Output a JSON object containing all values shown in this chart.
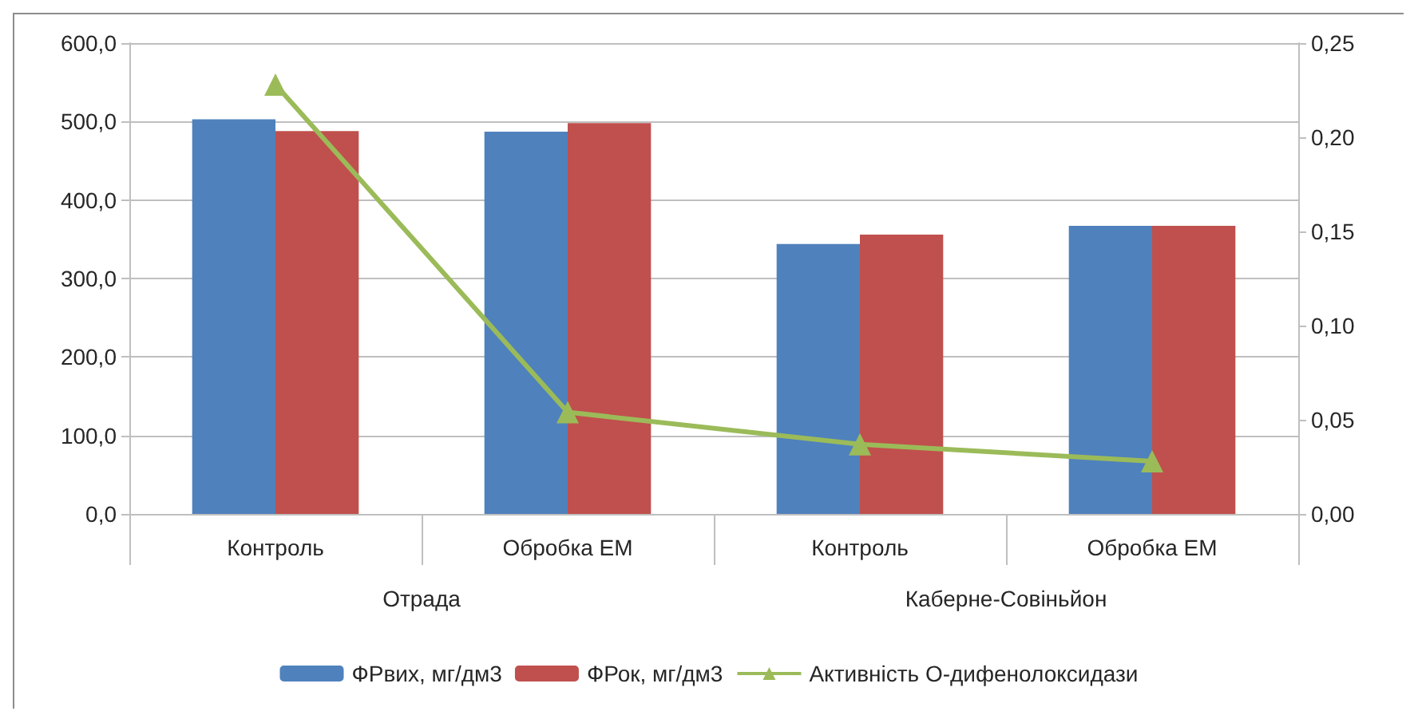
{
  "chart_data": {
    "type": "bar",
    "categories": [
      "Контроль",
      "Обробка ЕМ",
      "Контроль",
      "Обробка ЕМ"
    ],
    "annotations": [
      "Отрада",
      "Каберне-Совіньйон"
    ],
    "series": [
      {
        "name": "ФРвих, мг/дм3",
        "color": "#4f81bd",
        "values": [
          503,
          487,
          344,
          367
        ]
      },
      {
        "name": "ФРок, мг/дм3",
        "color": "#c0504d",
        "values": [
          488,
          498,
          356,
          367
        ]
      },
      {
        "name": "Активність О-дифенолоксидази",
        "type": "line",
        "axis": "y2",
        "color": "#9bbb59",
        "values": [
          0.228,
          0.054,
          0.037,
          0.028
        ]
      }
    ],
    "ylim": [
      0,
      600
    ],
    "yticks": [
      {
        "value": 0,
        "label": "0,0"
      },
      {
        "value": 100,
        "label": "100,0"
      },
      {
        "value": 200,
        "label": "200,0"
      },
      {
        "value": 300,
        "label": "300,0"
      },
      {
        "value": 400,
        "label": "400,0"
      },
      {
        "value": 500,
        "label": "500,0"
      },
      {
        "value": 600,
        "label": "600,0"
      }
    ],
    "y2lim": [
      0,
      0.25
    ],
    "y2ticks": [
      {
        "value": 0,
        "label": "0,00"
      },
      {
        "value": 0.05,
        "label": "0,05"
      },
      {
        "value": 0.1,
        "label": "0,10"
      },
      {
        "value": 0.15,
        "label": "0,15"
      },
      {
        "value": 0.2,
        "label": "0,20"
      },
      {
        "value": 0.25,
        "label": "0,25"
      }
    ],
    "grid": "y",
    "legend": "bottom",
    "marker": "triangle"
  }
}
